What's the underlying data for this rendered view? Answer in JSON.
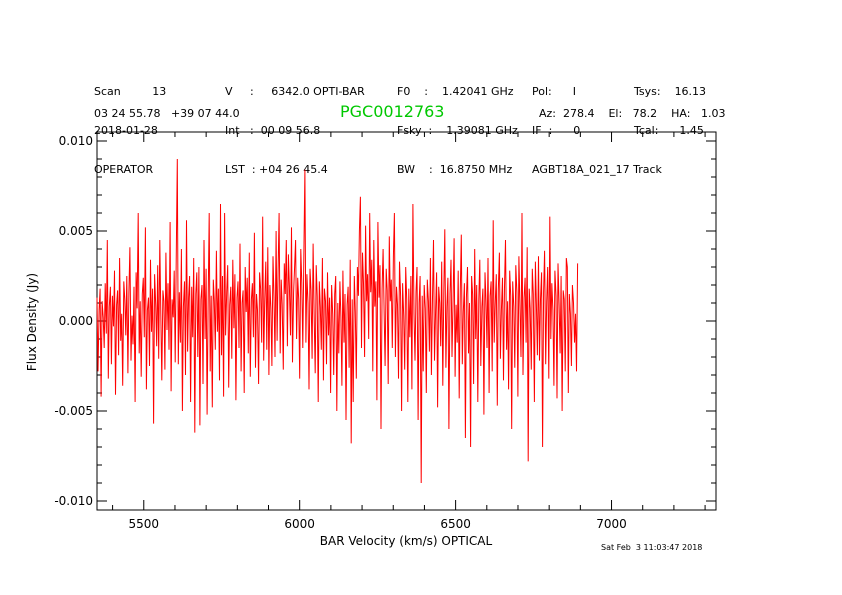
{
  "header": {
    "col1": [
      "Scan         13",
      "2018-01-28",
      "OPERATOR"
    ],
    "col2": [
      "V     :     6342.0 OPTI-BAR",
      "Int   :  00 09 56.8",
      "LST  : +04 26 45.4"
    ],
    "col3": [
      "F0    :    1.42041 GHz",
      "Fsky  :    1.39081 GHz",
      "BW    :  16.8750 MHz"
    ],
    "col4": [
      "Pol:      I",
      "IF  :      0",
      "AGBT18A_021_17 Track"
    ],
    "col5": [
      "Tsys:    16.13",
      "Tcal:      1.45",
      ""
    ],
    "coords": "03 24 55.78   +39 07 44.0",
    "pointing": "Az:  278.4    El:   78.2    HA:   1.03"
  },
  "timestamp": "Sat Feb  3 11:03:47 2018",
  "colors": {
    "series": "#ff0000",
    "title": "#00c800",
    "axes": "#000000"
  },
  "chart_data": {
    "type": "line",
    "title": "PGC0012763",
    "xlabel": "BAR Velocity (km/s) OPTICAL",
    "ylabel": "Flux Density (Jy)",
    "xlim": [
      5350,
      7335
    ],
    "ylim": [
      -0.0105,
      0.0105
    ],
    "xticks": [
      5500,
      6000,
      6500,
      7000
    ],
    "xtick_labels": [
      "5500",
      "6000",
      "6500",
      "7000"
    ],
    "yticks": [
      -0.01,
      -0.005,
      0.0,
      0.005,
      0.01
    ],
    "ytick_labels": [
      "-0.010",
      "-0.005",
      "0.000",
      "0.005",
      "0.010"
    ],
    "grid": false,
    "series": [
      {
        "x_start": 5350,
        "x_step": 3.3,
        "values": [
          0.0013,
          -0.0028,
          0.0006,
          0.0018,
          -0.0042,
          0.0011,
          0.0002,
          -0.0015,
          0.0021,
          -0.0007,
          0.0045,
          -0.0032,
          0.0008,
          0.0019,
          -0.0024,
          0.0014,
          -0.0003,
          0.0028,
          -0.0041,
          0.0009,
          0.0017,
          -0.0019,
          0.0035,
          -0.0011,
          0.0004,
          -0.0036,
          0.0022,
          0.0012,
          -0.0008,
          0.0025,
          -0.0029,
          0.0016,
          0.0041,
          -0.0022,
          0.0003,
          -0.0013,
          0.0019,
          -0.0045,
          0.0027,
          0.0007,
          0.006,
          -0.0018,
          0.0011,
          -0.0031,
          0.0015,
          0.0024,
          -0.0009,
          0.0052,
          -0.0038,
          0.0006,
          0.0013,
          -0.0025,
          0.0034,
          -0.0006,
          0.0018,
          -0.0057,
          0.0026,
          0.0009,
          -0.0014,
          0.0031,
          -0.0021,
          0.0045,
          0.0004,
          -0.0033,
          0.0017,
          0.0011,
          -0.0027,
          0.0038,
          -0.0005,
          0.0021,
          -0.0016,
          0.0055,
          -0.0039,
          0.0012,
          0.0002,
          0.0028,
          -0.0023,
          0.0033,
          0.009,
          -0.0024,
          0.0016,
          -0.0012,
          0.004,
          -0.005,
          0.0008,
          0.0022,
          -0.003,
          0.0056,
          -0.0017,
          0.0013,
          0.0025,
          -0.0045,
          0.0019,
          -0.0009,
          0.0035,
          -0.0062,
          0.0015,
          0.0027,
          -0.002,
          0.003,
          -0.0058,
          0.0012,
          0.002,
          -0.0035,
          0.0045,
          -0.001,
          0.0029,
          -0.0052,
          0.0008,
          0.006,
          -0.0028,
          0.0014,
          -0.0048,
          0.0023,
          0.0011,
          -0.0016,
          0.0039,
          -0.0006,
          0.0018,
          -0.0033,
          0.0065,
          -0.0019,
          0.0025,
          -0.0042,
          0.006,
          -0.0008,
          0.0016,
          0.0031,
          -0.0037,
          0.0009,
          0.0019,
          -0.0021,
          0.0034,
          -0.0004,
          0.0026,
          -0.0044,
          0.0013,
          0.0022,
          -0.0015,
          0.0043,
          -0.0028,
          0.001,
          0.0017,
          -0.004,
          0.003,
          0.0005,
          0.0024,
          -0.0018,
          0.0038,
          -0.0031,
          0.0012,
          0.0021,
          -0.0009,
          0.0049,
          -0.0026,
          0.0015,
          0.0006,
          -0.0035,
          0.0027,
          0.0018,
          -0.0012,
          0.0058,
          -0.0022,
          0.0011,
          0.0033,
          -0.0016,
          0.0041,
          -0.003,
          0.002,
          0.0007,
          -0.0025,
          0.0036,
          0.0013,
          -0.002,
          0.005,
          -0.0011,
          0.0028,
          0.006,
          -0.0018,
          0.0023,
          0.0009,
          -0.0027,
          0.0032,
          0.0015,
          0.0045,
          -0.0014,
          0.0037,
          0.0019,
          -0.0008,
          0.0052,
          -0.0023,
          0.0016,
          0.003,
          0.0045,
          -0.001,
          0.0024,
          0.0012,
          -0.0032,
          0.004,
          0.0021,
          -0.0015,
          0.0034,
          0.0084,
          -0.0012,
          0.0026,
          0.001,
          -0.0038,
          0.0029,
          0.0017,
          -0.0021,
          0.0043,
          0.0005,
          -0.0029,
          0.0031,
          0.0014,
          -0.0045,
          0.0022,
          0.0008,
          -0.0016,
          0.0035,
          -0.0033,
          0.0018,
          0.0011,
          -0.0024,
          0.0027,
          -0.0008,
          0.0013,
          -0.004,
          0.002,
          0.0004,
          -0.003,
          0.0015,
          0.0025,
          -0.005,
          0.001,
          -0.0018,
          0.0022,
          0.0002,
          -0.0036,
          0.0028,
          -0.0012,
          0.0015,
          -0.0055,
          0.0009,
          0.0019,
          -0.0026,
          0.0034,
          -0.0068,
          0.0012,
          -0.0045,
          0.0025,
          0.0005,
          -0.0032,
          0.003,
          0.0014,
          0.005,
          0.0069,
          -0.0015,
          0.0038,
          0.0021,
          -0.002,
          0.0053,
          0.0011,
          0.0026,
          -0.001,
          0.006,
          0.0016,
          0.0034,
          -0.0028,
          0.0045,
          0.0008,
          0.0022,
          -0.0044,
          0.0055,
          0.0013,
          0.0031,
          -0.006,
          0.0018,
          0.004,
          0.0006,
          -0.0025,
          0.0029,
          0.0017,
          -0.0035,
          0.0047,
          0.0011,
          0.0023,
          -0.0015,
          0.0036,
          0.006,
          -0.002,
          0.0019,
          0.0009,
          -0.0032,
          0.0033,
          0.0014,
          -0.005,
          0.0021,
          0.0003,
          -0.0027,
          0.003,
          0.0012,
          -0.0045,
          0.0018,
          -0.0009,
          0.0025,
          -0.0038,
          0.0065,
          0.0004,
          -0.0022,
          0.0016,
          0.003,
          -0.0055,
          0.001,
          0.0025,
          -0.009,
          0.0014,
          -0.0028,
          0.002,
          0.0007,
          -0.004,
          0.0023,
          0.0011,
          -0.0017,
          0.0035,
          -0.003,
          0.0013,
          0.0045,
          -0.0022,
          0.0006,
          0.0027,
          -0.0048,
          0.0019,
          0.001,
          -0.0014,
          0.0033,
          -0.0036,
          0.0016,
          0.0051,
          -0.0026,
          0.0008,
          0.0024,
          -0.006,
          0.0015,
          0.0034,
          -0.002,
          0.0012,
          0.0046,
          -0.0031,
          0.0009,
          -0.0012,
          0.0028,
          -0.0043,
          0.0017,
          0.0048,
          -0.0024,
          0.0005,
          0.0021,
          -0.0065,
          0.0013,
          0.003,
          -0.0018,
          0.001,
          -0.007,
          0.0025,
          0.0015,
          -0.0035,
          0.004,
          -0.001,
          0.002,
          -0.0045,
          0.0012,
          0.0034,
          -0.0025,
          0.0008,
          0.0018,
          -0.0052,
          0.0027,
          0.0011,
          -0.0015,
          0.0035,
          -0.004,
          0.0014,
          0.0022,
          -0.0028,
          0.0056,
          -0.0012,
          0.0009,
          0.0026,
          -0.0047,
          0.0017,
          0.0038,
          -0.0021,
          0.0006,
          0.0024,
          -0.0033,
          0.0019,
          0.0045,
          -0.0016,
          0.0011,
          -0.0038,
          0.0028,
          0.0014,
          -0.006,
          0.0022,
          0.0008,
          -0.0026,
          0.0031,
          0.0016,
          -0.0042,
          0.0036,
          0.001,
          -0.002,
          0.006,
          -0.003,
          0.0013,
          0.0024,
          -0.0012,
          0.0041,
          -0.0078,
          0.0018,
          0.0007,
          -0.0027,
          0.0029,
          0.0015,
          -0.0045,
          0.0033,
          0.0009,
          -0.0019,
          0.0036,
          -0.0022,
          0.0012,
          0.0027,
          -0.007,
          0.0016,
          0.0039,
          -0.0024,
          0.0011,
          0.003,
          -0.0032,
          0.0058,
          -0.001,
          0.0021,
          0.0006,
          -0.0036,
          0.0028,
          0.0014,
          -0.0043,
          0.0032,
          0.0009,
          -0.0018,
          0.0025,
          -0.005,
          0.0017,
          0.0012,
          -0.0028,
          0.0035,
          0.003,
          -0.004,
          0.0015,
          0.0004,
          -0.0025,
          0.002,
          0.001,
          -0.0012,
          0.0004,
          -0.0028,
          0.0032
        ]
      }
    ]
  }
}
